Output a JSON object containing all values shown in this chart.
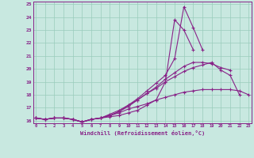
{
  "xlabel": "Windchill (Refroidissement éolien,°C)",
  "background_color": "#c8e8e0",
  "line_color": "#882288",
  "grid_color": "#99ccbb",
  "x_values": [
    0,
    1,
    2,
    3,
    4,
    5,
    6,
    7,
    8,
    9,
    10,
    11,
    12,
    13,
    14,
    15,
    16,
    17,
    18,
    19,
    20,
    21,
    22,
    23
  ],
  "line1": [
    16.2,
    16.1,
    16.2,
    16.2,
    16.1,
    15.9,
    16.1,
    16.2,
    16.3,
    16.4,
    16.6,
    16.8,
    17.2,
    17.6,
    19.0,
    23.8,
    23.0,
    21.5,
    null,
    null,
    null,
    null,
    null,
    null
  ],
  "line2": [
    16.2,
    16.1,
    16.2,
    16.2,
    16.1,
    15.9,
    16.1,
    16.2,
    16.4,
    16.7,
    17.2,
    17.7,
    18.3,
    18.9,
    19.5,
    20.8,
    24.8,
    23.2,
    21.5,
    null,
    null,
    null,
    null,
    null
  ],
  "line3": [
    16.2,
    16.1,
    16.2,
    16.2,
    16.1,
    15.9,
    16.1,
    16.2,
    16.4,
    16.7,
    17.1,
    17.6,
    18.1,
    18.6,
    19.2,
    19.7,
    20.2,
    20.5,
    20.5,
    20.4,
    20.1,
    19.9,
    null,
    null
  ],
  "line4": [
    16.2,
    16.1,
    16.2,
    16.2,
    16.1,
    15.9,
    16.1,
    16.2,
    16.5,
    16.8,
    17.2,
    17.6,
    18.1,
    18.5,
    19.0,
    19.4,
    19.8,
    20.1,
    20.3,
    20.5,
    19.9,
    19.5,
    18.0,
    null
  ],
  "line5": [
    16.2,
    16.1,
    16.2,
    16.2,
    16.1,
    15.9,
    16.1,
    16.2,
    16.4,
    16.6,
    16.9,
    17.1,
    17.3,
    17.6,
    17.8,
    18.0,
    18.2,
    18.3,
    18.4,
    18.4,
    18.4,
    18.4,
    18.3,
    18.0
  ],
  "ylim_min": 15.8,
  "ylim_max": 25.2,
  "xlim_min": -0.3,
  "xlim_max": 23.3,
  "yticks": [
    16,
    17,
    18,
    19,
    20,
    21,
    22,
    23,
    24,
    25
  ],
  "xticks": [
    0,
    1,
    2,
    3,
    4,
    5,
    6,
    7,
    8,
    9,
    10,
    11,
    12,
    13,
    14,
    15,
    16,
    17,
    18,
    19,
    20,
    21,
    22,
    23
  ]
}
